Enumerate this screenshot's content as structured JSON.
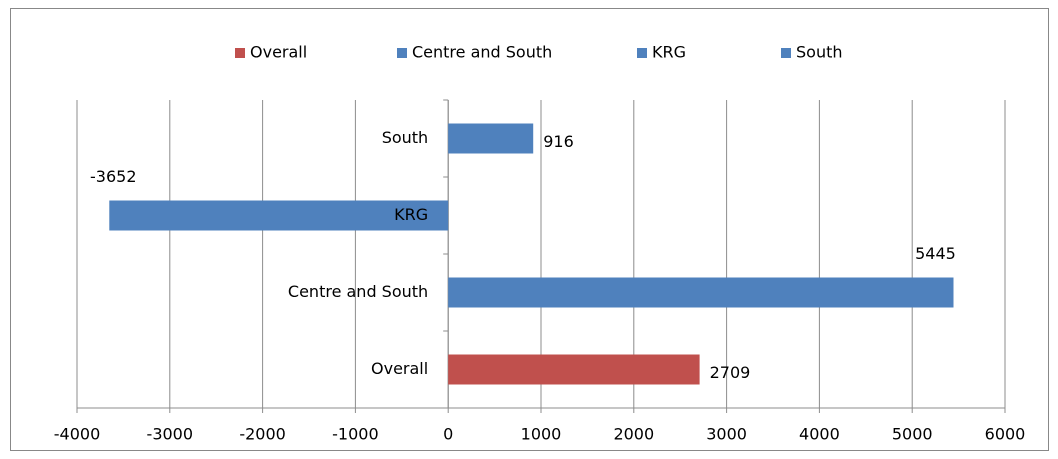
{
  "chart_data": {
    "type": "bar",
    "orientation": "horizontal",
    "categories": [
      "Overall",
      "Centre and South",
      "KRG",
      "South"
    ],
    "values": [
      2709,
      5445,
      -3652,
      916
    ],
    "colors": [
      "#c0504d",
      "#4f81bd",
      "#4f81bd",
      "#4f81bd"
    ],
    "xlim": [
      -4000,
      6000
    ],
    "xticks": [
      -4000,
      -3000,
      -2000,
      -1000,
      0,
      1000,
      2000,
      3000,
      4000,
      5000,
      6000
    ],
    "grid": true,
    "legend": "top"
  }
}
